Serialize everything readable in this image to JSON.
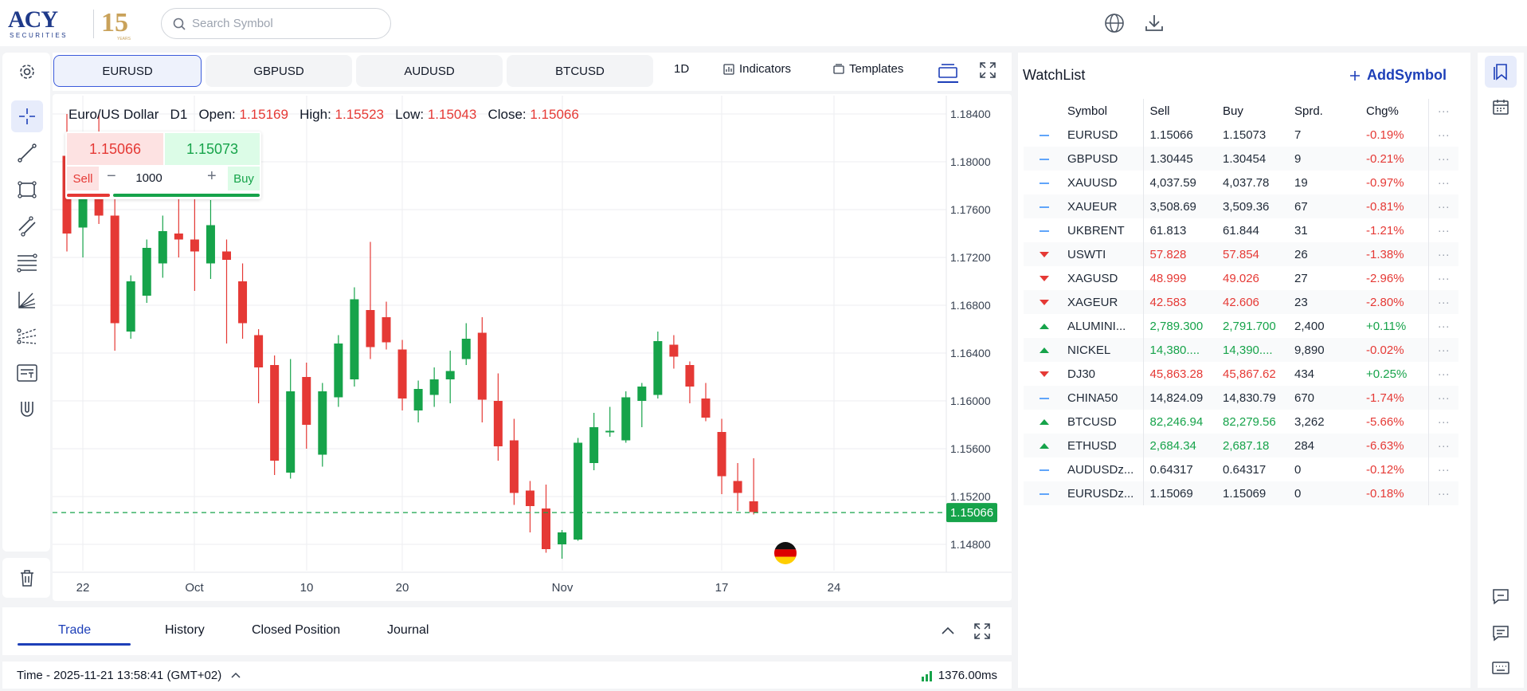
{
  "brand": {
    "logo_text": "ACY",
    "logo_sub": "SECURITIES",
    "anniversary": "15",
    "anniversary_sub": "YEARS"
  },
  "search": {
    "placeholder": "Search Symbol"
  },
  "symbol_tabs": [
    {
      "label": "EURUSD",
      "active": true
    },
    {
      "label": "GBPUSD",
      "active": false
    },
    {
      "label": "AUDUSD",
      "active": false
    },
    {
      "label": "BTCUSD",
      "active": false
    }
  ],
  "toolbar": {
    "timeframe": "1D",
    "indicators": "Indicators",
    "templates": "Templates"
  },
  "legend": {
    "name": "Euro/US Dollar",
    "timeframe": "D1",
    "open_label": "Open:",
    "open": "1.15169",
    "high_label": "High:",
    "high": "1.15523",
    "low_label": "Low:",
    "low": "1.15043",
    "close_label": "Close:",
    "close": "1.15066"
  },
  "order": {
    "sell_price": "1.15066",
    "buy_price": "1.15073",
    "sell_label": "Sell",
    "buy_label": "Buy",
    "quantity": "1000",
    "minus": "−",
    "plus": "+"
  },
  "chart_data": {
    "type": "candlestick",
    "symbol": "EURUSD",
    "price_axis": [
      "1.18400",
      "1.18000",
      "1.17600",
      "1.17200",
      "1.16800",
      "1.16400",
      "1.16000",
      "1.15600",
      "1.15200",
      "1.14800"
    ],
    "ylim": [
      1.1465,
      1.1853
    ],
    "time_axis": [
      "22",
      "Oct",
      "10",
      "20",
      "Nov",
      "17",
      "24"
    ],
    "current_price": "1.15066",
    "grid": true,
    "candles": [
      {
        "o": 1.1805,
        "h": 1.184,
        "l": 1.1725,
        "c": 1.174
      },
      {
        "o": 1.1745,
        "h": 1.1822,
        "l": 1.172,
        "c": 1.1812
      },
      {
        "o": 1.181,
        "h": 1.184,
        "l": 1.1748,
        "c": 1.1755
      },
      {
        "o": 1.1755,
        "h": 1.1772,
        "l": 1.1642,
        "c": 1.1665
      },
      {
        "o": 1.1658,
        "h": 1.1705,
        "l": 1.1652,
        "c": 1.17
      },
      {
        "o": 1.1688,
        "h": 1.1735,
        "l": 1.1682,
        "c": 1.1728
      },
      {
        "o": 1.1715,
        "h": 1.1755,
        "l": 1.1703,
        "c": 1.1742
      },
      {
        "o": 1.174,
        "h": 1.1792,
        "l": 1.172,
        "c": 1.1735
      },
      {
        "o": 1.1735,
        "h": 1.1785,
        "l": 1.1692,
        "c": 1.1725
      },
      {
        "o": 1.1715,
        "h": 1.1768,
        "l": 1.1702,
        "c": 1.1747
      },
      {
        "o": 1.1725,
        "h": 1.1735,
        "l": 1.1648,
        "c": 1.1718
      },
      {
        "o": 1.17,
        "h": 1.1715,
        "l": 1.1652,
        "c": 1.1665
      },
      {
        "o": 1.1655,
        "h": 1.166,
        "l": 1.1598,
        "c": 1.1628
      },
      {
        "o": 1.163,
        "h": 1.1638,
        "l": 1.1538,
        "c": 1.155
      },
      {
        "o": 1.154,
        "h": 1.1635,
        "l": 1.1535,
        "c": 1.1608
      },
      {
        "o": 1.162,
        "h": 1.1632,
        "l": 1.156,
        "c": 1.158
      },
      {
        "o": 1.1555,
        "h": 1.1615,
        "l": 1.1545,
        "c": 1.1608
      },
      {
        "o": 1.1603,
        "h": 1.1655,
        "l": 1.1595,
        "c": 1.1648
      },
      {
        "o": 1.1618,
        "h": 1.1695,
        "l": 1.1612,
        "c": 1.1685
      },
      {
        "o": 1.1676,
        "h": 1.1733,
        "l": 1.1635,
        "c": 1.1645
      },
      {
        "o": 1.167,
        "h": 1.1683,
        "l": 1.1643,
        "c": 1.1649
      },
      {
        "o": 1.1643,
        "h": 1.1651,
        "l": 1.1592,
        "c": 1.1602
      },
      {
        "o": 1.1592,
        "h": 1.1617,
        "l": 1.1582,
        "c": 1.161
      },
      {
        "o": 1.1605,
        "h": 1.1628,
        "l": 1.1595,
        "c": 1.1618
      },
      {
        "o": 1.1618,
        "h": 1.1642,
        "l": 1.1598,
        "c": 1.1625
      },
      {
        "o": 1.1635,
        "h": 1.1665,
        "l": 1.163,
        "c": 1.1652
      },
      {
        "o": 1.1657,
        "h": 1.167,
        "l": 1.1582,
        "c": 1.1601
      },
      {
        "o": 1.16,
        "h": 1.1623,
        "l": 1.155,
        "c": 1.1562
      },
      {
        "o": 1.1567,
        "h": 1.1585,
        "l": 1.1513,
        "c": 1.1523
      },
      {
        "o": 1.1525,
        "h": 1.1533,
        "l": 1.149,
        "c": 1.1512
      },
      {
        "o": 1.151,
        "h": 1.153,
        "l": 1.1473,
        "c": 1.1476
      },
      {
        "o": 1.148,
        "h": 1.1492,
        "l": 1.1468,
        "c": 1.149
      },
      {
        "o": 1.1484,
        "h": 1.1569,
        "l": 1.1483,
        "c": 1.1565
      },
      {
        "o": 1.1548,
        "h": 1.159,
        "l": 1.1542,
        "c": 1.1578
      },
      {
        "o": 1.1575,
        "h": 1.1595,
        "l": 1.157,
        "c": 1.1575
      },
      {
        "o": 1.1567,
        "h": 1.1608,
        "l": 1.1565,
        "c": 1.1603
      },
      {
        "o": 1.16,
        "h": 1.1615,
        "l": 1.1578,
        "c": 1.1612
      },
      {
        "o": 1.1605,
        "h": 1.1658,
        "l": 1.1602,
        "c": 1.165
      },
      {
        "o": 1.1647,
        "h": 1.1655,
        "l": 1.1627,
        "c": 1.1637
      },
      {
        "o": 1.163,
        "h": 1.1633,
        "l": 1.1598,
        "c": 1.1612
      },
      {
        "o": 1.1602,
        "h": 1.1615,
        "l": 1.1583,
        "c": 1.1586
      },
      {
        "o": 1.1574,
        "h": 1.1585,
        "l": 1.1522,
        "c": 1.1537
      },
      {
        "o": 1.1533,
        "h": 1.1548,
        "l": 1.1508,
        "c": 1.1523
      },
      {
        "o": 1.1516,
        "h": 1.1552,
        "l": 1.1505,
        "c": 1.1507
      }
    ]
  },
  "flag": {
    "country": "Germany",
    "icon": "de-flag-icon"
  },
  "bottom_tabs": [
    {
      "label": "Trade",
      "active": true
    },
    {
      "label": "History",
      "active": false
    },
    {
      "label": "Closed Position",
      "active": false
    },
    {
      "label": "Journal",
      "active": false
    }
  ],
  "status": {
    "time": "Time - 2025-11-21 13:58:41 (GMT+02)",
    "latency": "1376.00ms"
  },
  "watchlist": {
    "title": "WatchList",
    "add_label": "AddSymbol",
    "headers": [
      "Symbol",
      "Sell",
      "Buy",
      "Sprd.",
      "Chg%",
      "···"
    ],
    "rows": [
      {
        "dir": "flat",
        "symbol": "EURUSD",
        "sell": "1.15066",
        "buy": "1.15073",
        "spread": "7",
        "chg": "-0.19%",
        "pcolor": "default",
        "ccolor": "red"
      },
      {
        "dir": "flat",
        "symbol": "GBPUSD",
        "sell": "1.30445",
        "buy": "1.30454",
        "spread": "9",
        "chg": "-0.21%",
        "pcolor": "default",
        "ccolor": "red"
      },
      {
        "dir": "flat",
        "symbol": "XAUUSD",
        "sell": "4,037.59",
        "buy": "4,037.78",
        "spread": "19",
        "chg": "-0.97%",
        "pcolor": "default",
        "ccolor": "red"
      },
      {
        "dir": "flat",
        "symbol": "XAUEUR",
        "sell": "3,508.69",
        "buy": "3,509.36",
        "spread": "67",
        "chg": "-0.81%",
        "pcolor": "default",
        "ccolor": "red"
      },
      {
        "dir": "flat",
        "symbol": "UKBRENT",
        "sell": "61.813",
        "buy": "61.844",
        "spread": "31",
        "chg": "-1.21%",
        "pcolor": "default",
        "ccolor": "red"
      },
      {
        "dir": "down",
        "symbol": "USWTI",
        "sell": "57.828",
        "buy": "57.854",
        "spread": "26",
        "chg": "-1.38%",
        "pcolor": "red",
        "ccolor": "red"
      },
      {
        "dir": "down",
        "symbol": "XAGUSD",
        "sell": "48.999",
        "buy": "49.026",
        "spread": "27",
        "chg": "-2.96%",
        "pcolor": "red",
        "ccolor": "red"
      },
      {
        "dir": "down",
        "symbol": "XAGEUR",
        "sell": "42.583",
        "buy": "42.606",
        "spread": "23",
        "chg": "-2.80%",
        "pcolor": "red",
        "ccolor": "red"
      },
      {
        "dir": "up",
        "symbol": "ALUMINI...",
        "sell": "2,789.300",
        "buy": "2,791.700",
        "spread": "2,400",
        "chg": "+0.11%",
        "pcolor": "green",
        "ccolor": "green"
      },
      {
        "dir": "up",
        "symbol": "NICKEL",
        "sell": "14,380....",
        "buy": "14,390....",
        "spread": "9,890",
        "chg": "-0.02%",
        "pcolor": "green",
        "ccolor": "red"
      },
      {
        "dir": "down",
        "symbol": "DJ30",
        "sell": "45,863.28",
        "buy": "45,867.62",
        "spread": "434",
        "chg": "+0.25%",
        "pcolor": "red",
        "ccolor": "green"
      },
      {
        "dir": "flat",
        "symbol": "CHINA50",
        "sell": "14,824.09",
        "buy": "14,830.79",
        "spread": "670",
        "chg": "-1.74%",
        "pcolor": "default",
        "ccolor": "red"
      },
      {
        "dir": "up",
        "symbol": "BTCUSD",
        "sell": "82,246.94",
        "buy": "82,279.56",
        "spread": "3,262",
        "chg": "-5.66%",
        "pcolor": "green",
        "ccolor": "red"
      },
      {
        "dir": "up",
        "symbol": "ETHUSD",
        "sell": "2,684.34",
        "buy": "2,687.18",
        "spread": "284",
        "chg": "-6.63%",
        "pcolor": "green",
        "ccolor": "red"
      },
      {
        "dir": "flat",
        "symbol": "AUDUSDz...",
        "sell": "0.64317",
        "buy": "0.64317",
        "spread": "0",
        "chg": "-0.12%",
        "pcolor": "default",
        "ccolor": "red"
      },
      {
        "dir": "flat",
        "symbol": "EURUSDz...",
        "sell": "1.15069",
        "buy": "1.15069",
        "spread": "0",
        "chg": "-0.18%",
        "pcolor": "default",
        "ccolor": "red"
      }
    ]
  },
  "colors": {
    "up": "#16a34a",
    "down": "#e53935",
    "accent": "#1d3fb8"
  }
}
